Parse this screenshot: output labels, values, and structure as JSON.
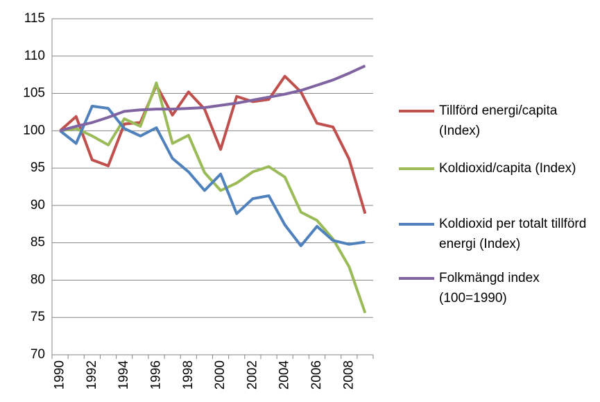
{
  "chart_data": {
    "type": "line",
    "categories": [
      "1990",
      null,
      "1992",
      null,
      "1994",
      null,
      "1996",
      null,
      "1998",
      null,
      "2000",
      null,
      "2002",
      null,
      "2004",
      null,
      "2006",
      null,
      "2008",
      null
    ],
    "series": [
      {
        "name": "Tillförd energi/capita (Index)",
        "color": "#c0504d",
        "values": [
          100,
          101.9,
          96.1,
          95.3,
          100.9,
          101.1,
          106.1,
          102.1,
          105.2,
          102.9,
          97.5,
          104.6,
          103.9,
          104.2,
          107.3,
          105.2,
          101.0,
          100.5,
          96.2,
          88.9
        ]
      },
      {
        "name": "Koldioxid/capita (Index)",
        "color": "#9bbb59",
        "values": [
          100,
          100.3,
          99.3,
          98.1,
          101.6,
          100.6,
          106.4,
          98.3,
          99.4,
          94.4,
          92.0,
          93.0,
          94.5,
          95.2,
          93.8,
          89.1,
          88.0,
          85.5,
          81.8,
          75.6
        ]
      },
      {
        "name": "Koldioxid per totalt tillförd energi (Index)",
        "color": "#4f81bd",
        "values": [
          100,
          98.3,
          103.3,
          103.0,
          100.3,
          99.3,
          100.4,
          96.3,
          94.5,
          92.0,
          94.2,
          88.9,
          90.9,
          91.3,
          87.4,
          84.6,
          87.2,
          85.3,
          84.8,
          85.1
        ]
      },
      {
        "name": "Folkmängd index (100=1990)",
        "color": "#8064a2",
        "values": [
          100,
          100.6,
          101.1,
          101.8,
          102.6,
          102.8,
          102.9,
          102.9,
          103.0,
          103.1,
          103.4,
          103.7,
          104.1,
          104.5,
          104.9,
          105.4,
          106.1,
          106.8,
          107.7,
          108.7
        ]
      }
    ],
    "ylim": [
      70,
      115
    ],
    "yticks": [
      70,
      75,
      80,
      85,
      90,
      95,
      100,
      105,
      110,
      115
    ],
    "grid": true,
    "legend": "right"
  }
}
